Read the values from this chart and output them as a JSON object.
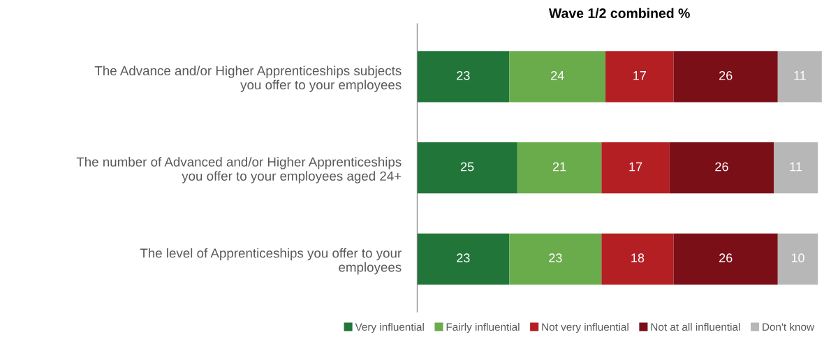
{
  "chart_data": {
    "type": "bar",
    "orientation": "horizontal",
    "stacked": true,
    "title": "Wave 1/2 combined %",
    "categories": [
      "The Advance and/or Higher Apprenticeships subjects\nyou offer to your employees",
      "The number of Advanced and/or Higher Apprenticeships\nyou offer to your employees aged 24+",
      "The level of Apprenticeships you offer to your\nemployees"
    ],
    "series": [
      {
        "name": "Very influential",
        "color": "#217538",
        "values": [
          23,
          25,
          23
        ]
      },
      {
        "name": "Fairly influential",
        "color": "#6aac4c",
        "values": [
          24,
          21,
          23
        ]
      },
      {
        "name": "Not very influential",
        "color": "#b41f24",
        "values": [
          17,
          17,
          18
        ]
      },
      {
        "name": "Not at all influential",
        "color": "#7a0f17",
        "values": [
          26,
          26,
          26
        ]
      },
      {
        "name": "Don't know",
        "color": "#b7b7b7",
        "values": [
          11,
          11,
          10
        ]
      }
    ],
    "data_labels": true,
    "legend": "bottom",
    "grid": false,
    "tick_labels": "y"
  }
}
